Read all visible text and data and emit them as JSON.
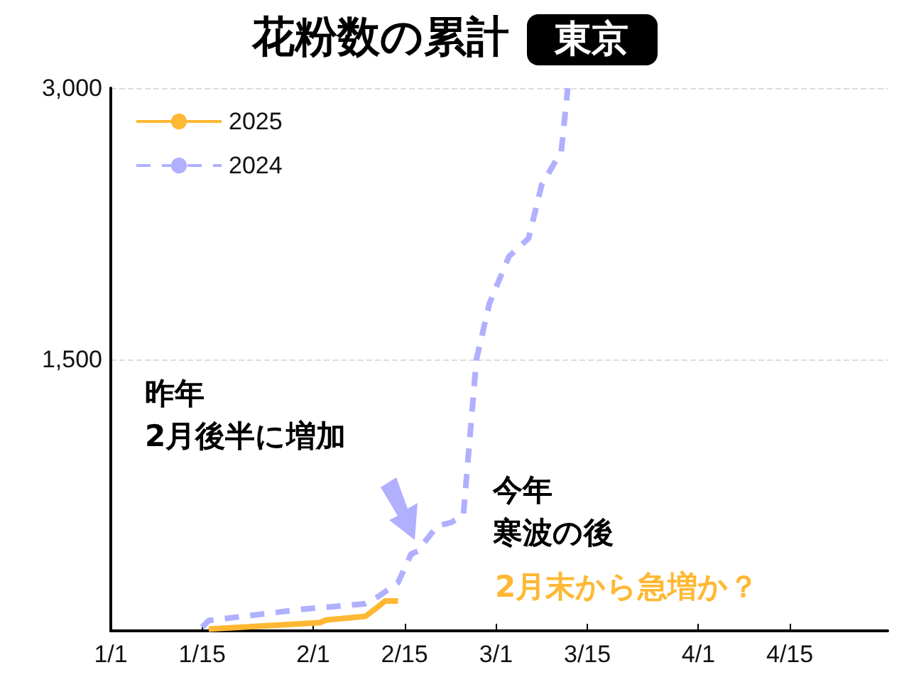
{
  "chart_data": {
    "type": "line",
    "title": "花粉数の累計",
    "subtitle": "東京",
    "annotations": [
      "昨年",
      "2月後半に増加",
      "今年",
      "寒波の後",
      "2月末から急増か？"
    ],
    "series": [
      {
        "name": "2025",
        "color": "#ffb833",
        "line_style": "solid",
        "x": [
          "--01-16",
          "--02-02",
          "--02-03",
          "--02-09",
          "--02-11",
          "--02-12",
          "--02-14"
        ],
        "values": [
          10,
          45,
          60,
          80,
          135,
          165,
          165
        ]
      },
      {
        "name": "2024",
        "color": "#b0b0ff",
        "line_style": "dashed",
        "x": [
          "--01-15",
          "--01-16",
          "--01-30",
          "--02-09",
          "--02-11",
          "--02-14",
          "--02-16",
          "--02-17",
          "--02-20",
          "--02-22",
          "--02-24",
          "--02-26",
          "--02-28",
          "--03-03",
          "--03-06",
          "--03-08",
          "--03-11",
          "--03-12"
        ],
        "values": [
          20,
          57,
          118,
          150,
          190,
          267,
          424,
          440,
          580,
          597,
          636,
          1500,
          1810,
          2070,
          2170,
          2465,
          2650,
          3000
        ]
      }
    ],
    "xlim": [
      "--01-01",
      "--04-30"
    ],
    "xticks": [
      {
        "value": "--01-01",
        "label": "1/1"
      },
      {
        "value": "--01-15",
        "label": "1/15"
      },
      {
        "value": "--02-01",
        "label": "2/1"
      },
      {
        "value": "--02-15",
        "label": "2/15"
      },
      {
        "value": "--03-01",
        "label": "3/1"
      },
      {
        "value": "--03-15",
        "label": "3/15"
      },
      {
        "value": "--04-01",
        "label": "4/1"
      },
      {
        "value": "--04-15",
        "label": "4/15"
      }
    ],
    "ylim": [
      0,
      3000
    ],
    "yticks": [
      {
        "value": 0,
        "label": null
      },
      {
        "value": 1500,
        "label": "1,500"
      },
      {
        "value": 3000,
        "label": "3,000"
      }
    ],
    "grid": "y",
    "legend": "top left",
    "marker": "none"
  }
}
